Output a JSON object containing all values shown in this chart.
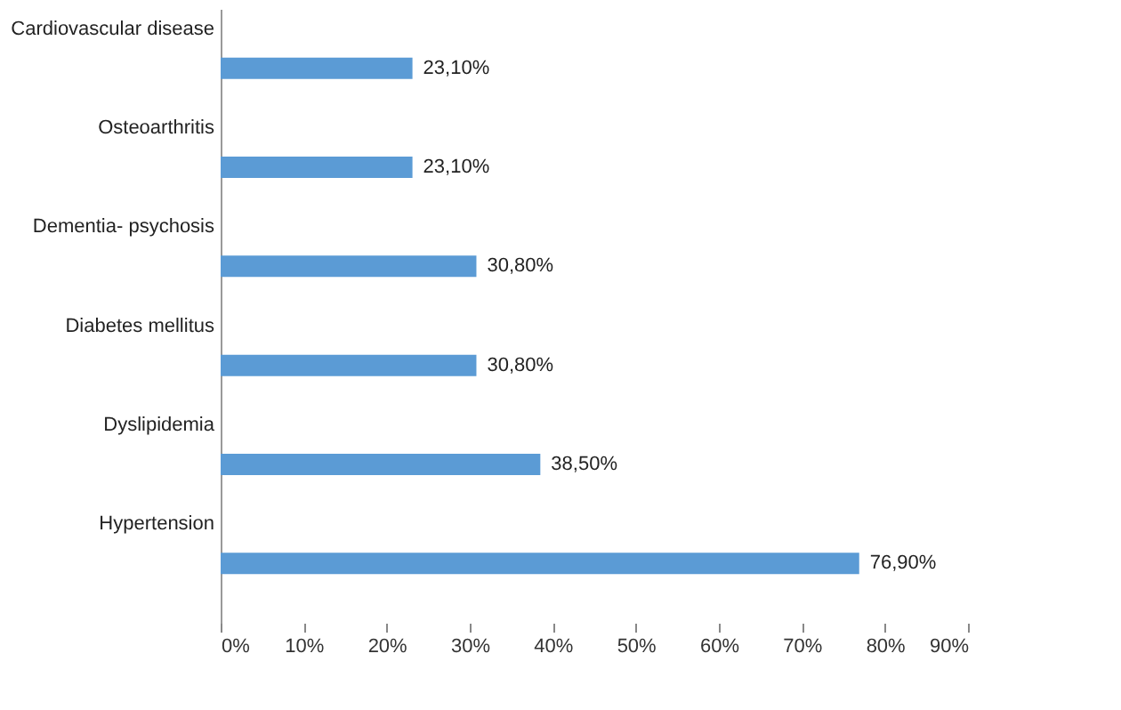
{
  "chart_data": {
    "type": "bar",
    "orientation": "horizontal",
    "categories": [
      "Cardiovascular disease",
      "Osteoarthritis",
      "Dementia- psychosis",
      "Diabetes mellitus",
      "Dyslipidemia",
      "Hypertension"
    ],
    "values": [
      23.1,
      23.1,
      30.8,
      30.8,
      38.5,
      76.9
    ],
    "value_labels": [
      "23,10%",
      "23,10%",
      "30,80%",
      "30,80%",
      "38,50%",
      "76,90%"
    ],
    "color": "#5b9bd5",
    "xlim": [
      0,
      90
    ],
    "xticks": [
      {
        "value": 0,
        "label": "0%"
      },
      {
        "value": 10,
        "label": "10%"
      },
      {
        "value": 20,
        "label": "20%"
      },
      {
        "value": 30,
        "label": "30%"
      },
      {
        "value": 40,
        "label": "40%"
      },
      {
        "value": 50,
        "label": "50%"
      },
      {
        "value": 60,
        "label": "60%"
      },
      {
        "value": 70,
        "label": "70%"
      },
      {
        "value": 80,
        "label": "80%"
      },
      {
        "value": 90,
        "label": "90%"
      }
    ],
    "grid": false
  }
}
